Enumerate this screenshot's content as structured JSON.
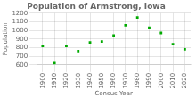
{
  "chart_data": {
    "type": "scatter",
    "title": "Population of Armstrong, Iowa",
    "xlabel": "Census Year",
    "ylabel": "Population",
    "x": [
      1900,
      1910,
      1920,
      1930,
      1940,
      1950,
      1960,
      1970,
      1980,
      1990,
      2000,
      2010,
      2020
    ],
    "values": [
      820,
      620,
      820,
      760,
      860,
      870,
      940,
      1060,
      1150,
      1030,
      970,
      840,
      780
    ],
    "color": "#00aa00",
    "marker": "square",
    "xlim": [
      1895,
      2025
    ],
    "xticks": [
      1900,
      1910,
      1920,
      1930,
      1940,
      1950,
      1960,
      1970,
      1980,
      1990,
      2000,
      2010,
      2020
    ],
    "ylim": [
      600,
      1200
    ],
    "yticks": [
      600,
      700,
      800,
      900,
      1000,
      1100,
      1200
    ],
    "grid": true
  }
}
